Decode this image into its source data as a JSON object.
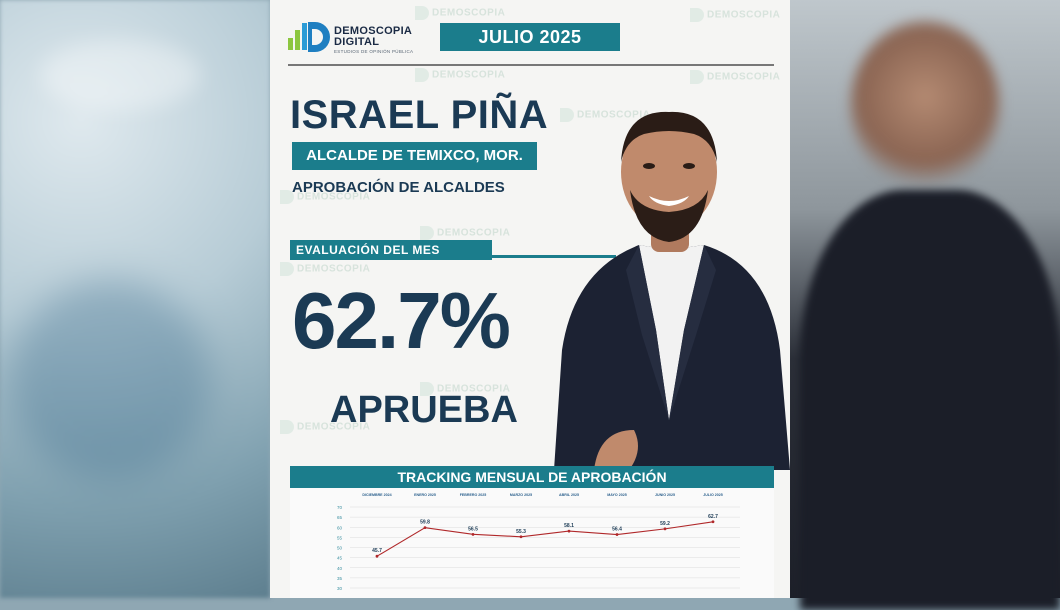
{
  "brand": {
    "name_line1": "DEMOSCOPIA",
    "name_line2": "DIGITAL",
    "tagline": "ESTUDIOS DE OPINIÓN PÚBLICA"
  },
  "header": {
    "month": "JULIO 2025"
  },
  "person": {
    "name": "ISRAEL PIÑA",
    "role": "ALCALDE DE TEMIXCO, MOR.",
    "subtitle": "APROBACIÓN DE ALCALDES"
  },
  "evaluation": {
    "label": "EVALUACIÓN DEL MES",
    "value": "62.7%",
    "verdict": "APRUEBA"
  },
  "colors": {
    "teal": "#1b7d8c",
    "navy": "#1b3a54",
    "line": "#b0282a"
  },
  "chart_data": {
    "type": "line",
    "title": "TRACKING MENSUAL DE APROBACIÓN",
    "categories": [
      "DICIEMBRE 2024",
      "ENERO 2025",
      "FEBRERO 2025",
      "MARZO 2025",
      "ABRIL 2025",
      "MAYO 2025",
      "JUNIO 2025",
      "JULIO 2025"
    ],
    "values": [
      45.7,
      59.8,
      56.5,
      55.3,
      58.1,
      56.4,
      59.2,
      62.7
    ],
    "value_labels": [
      "45.7",
      "59.8",
      "56.5",
      "55.3",
      "58.1",
      "56.4",
      "59.2",
      "62.7"
    ],
    "y_ticks": [
      "70",
      "65",
      "60",
      "55",
      "50",
      "45",
      "40",
      "35",
      "30"
    ],
    "ylim": [
      30,
      70
    ],
    "grid": true
  }
}
